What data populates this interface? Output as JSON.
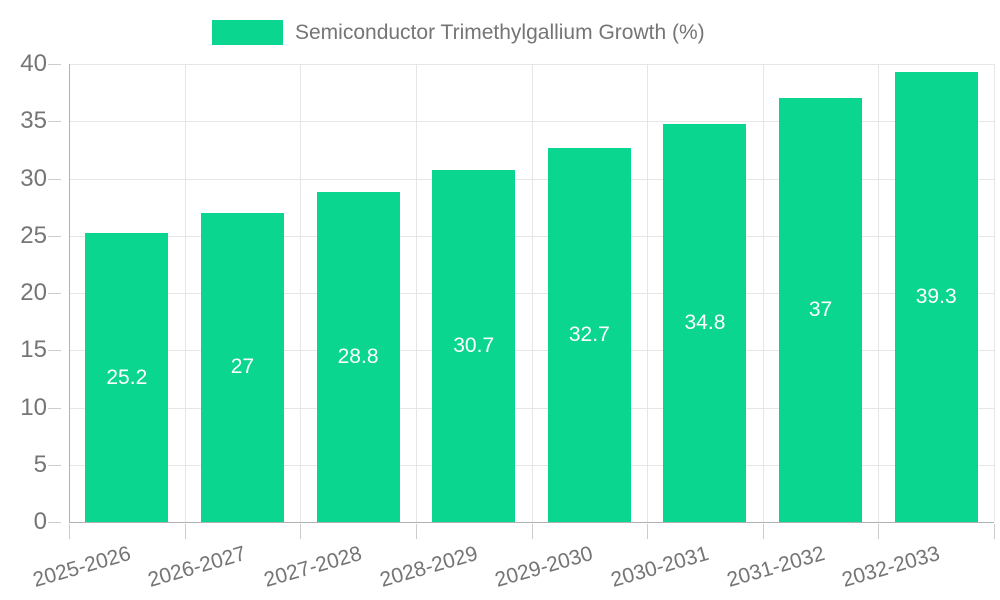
{
  "chart_data": {
    "type": "bar",
    "title": "Semiconductor Trimethylgallium Growth (%)",
    "categories": [
      "2025-2026",
      "2026-2027",
      "2027-2028",
      "2028-2029",
      "2029-2030",
      "2030-2031",
      "2031-2032",
      "2032-2033"
    ],
    "values": [
      25.2,
      27,
      28.8,
      30.7,
      32.7,
      34.8,
      37,
      39.3
    ],
    "value_labels": [
      "25.2",
      "27",
      "28.8",
      "30.7",
      "32.7",
      "34.8",
      "37",
      "39.3"
    ],
    "series_name": "Semiconductor Trimethylgallium Growth (%)",
    "xlabel": "",
    "ylabel": "",
    "ylim": [
      0,
      40
    ],
    "ytick_step": 5,
    "ytick_labels": [
      "0",
      "5",
      "10",
      "15",
      "20",
      "25",
      "30",
      "35",
      "40"
    ],
    "grid": "on",
    "legend_position": "top",
    "colors": {
      "bar": "#0ad68f",
      "value_label": "#ffffff",
      "axis_text": "#757575",
      "gridline": "#e6e6e6",
      "axis_line": "#b0b0b0",
      "background": "#ffffff"
    }
  }
}
